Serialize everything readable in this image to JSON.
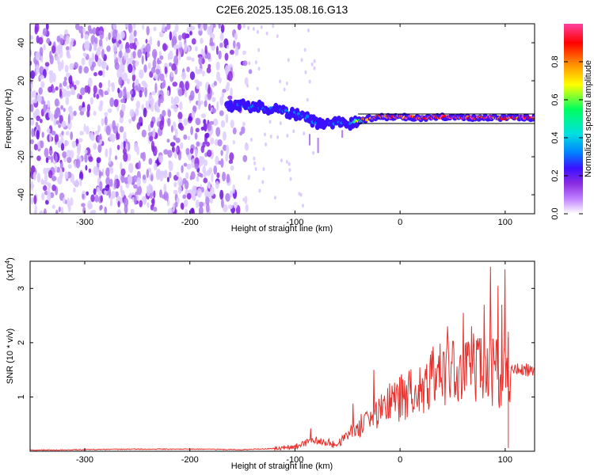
{
  "figure": {
    "title": "C2E6.2025.135.08.16.G13"
  },
  "chart_data": [
    {
      "type": "heatmap",
      "title": "C2E6.2025.135.08.16.G13",
      "xlabel": "Height of straight line (km)",
      "ylabel": "Frequency (Hz)",
      "xlim": [
        -352,
        128
      ],
      "ylim": [
        -50,
        50
      ],
      "x_ticks": [
        -300,
        -200,
        -100,
        0,
        100
      ],
      "y_ticks": [
        -40,
        -20,
        0,
        20,
        40
      ],
      "colorbar": {
        "label": "Normalized spectral amplitude",
        "range": [
          0.0,
          1.0
        ],
        "ticks": [
          0.0,
          0.2,
          0.4,
          0.6,
          0.8
        ],
        "colormap": [
          "#ffffff",
          "#c080ff",
          "#8a2be2",
          "#3a10ff",
          "#0080ff",
          "#00e0e0",
          "#00ff60",
          "#ffff00",
          "#ff8000",
          "#ff0000",
          "#ff40a0"
        ]
      },
      "signal_track": {
        "x": [
          -165,
          -150,
          -130,
          -110,
          -90,
          -80,
          -70,
          -60,
          -50,
          -40,
          -30,
          -20,
          0,
          20,
          40,
          60,
          80,
          100,
          128
        ],
        "frequency": [
          6,
          7,
          6,
          4,
          1,
          -2,
          -3,
          -2,
          -3,
          -1,
          0,
          1,
          1,
          0.5,
          1,
          0.5,
          0.8,
          0.5,
          0.5
        ],
        "amplitude": [
          0.25,
          0.35,
          0.35,
          0.35,
          0.4,
          0.35,
          0.3,
          0.35,
          0.4,
          0.7,
          0.85,
          0.9,
          0.92,
          0.95,
          0.95,
          0.95,
          0.95,
          0.95,
          0.95
        ]
      },
      "noise_region": {
        "x_from": -352,
        "x_to": -160,
        "level": "0.1-0.3"
      }
    },
    {
      "type": "line",
      "xlabel": "Height of straight line (km)",
      "ylabel": "SNR (10 * v/v)",
      "y_multiplier": "(x10",
      "y_multiplier_exp": "4",
      "y_multiplier_close": ")",
      "xlim": [
        -352,
        128
      ],
      "ylim": [
        0,
        3.5
      ],
      "x_ticks": [
        -300,
        -200,
        -100,
        0,
        100
      ],
      "y_ticks": [
        1,
        2,
        3
      ],
      "series": [
        {
          "color": "#e8302c",
          "x": [
            -352,
            -300,
            -250,
            -200,
            -150,
            -120,
            -100,
            -90,
            -80,
            -70,
            -60,
            -50,
            -40,
            -30,
            -20,
            -10,
            0,
            10,
            20,
            30,
            40,
            50,
            60,
            70,
            80,
            90,
            100,
            105,
            110,
            120,
            128
          ],
          "y": [
            0.02,
            0.03,
            0.04,
            0.04,
            0.03,
            0.05,
            0.08,
            0.15,
            0.2,
            0.15,
            0.12,
            0.3,
            0.45,
            0.55,
            0.7,
            0.9,
            1.0,
            1.1,
            1.25,
            1.35,
            1.4,
            1.4,
            1.45,
            1.5,
            1.5,
            1.45,
            1.4,
            1.45,
            1.5,
            1.5,
            1.45
          ],
          "peaks": [
            {
              "x": -85,
              "y": 0.42
            },
            {
              "x": -45,
              "y": 0.88
            },
            {
              "x": -25,
              "y": 1.5
            },
            {
              "x": -10,
              "y": 1.25
            },
            {
              "x": 30,
              "y": 1.85
            },
            {
              "x": 45,
              "y": 2.3
            },
            {
              "x": 60,
              "y": 2.55
            },
            {
              "x": 68,
              "y": 2.3
            },
            {
              "x": 80,
              "y": 2.7
            },
            {
              "x": 86,
              "y": 3.4
            },
            {
              "x": 93,
              "y": 3.05
            },
            {
              "x": 97,
              "y": 2.7
            },
            {
              "x": 100,
              "y": 3.35
            },
            {
              "x": 103,
              "y": 2.1
            }
          ]
        }
      ]
    }
  ]
}
